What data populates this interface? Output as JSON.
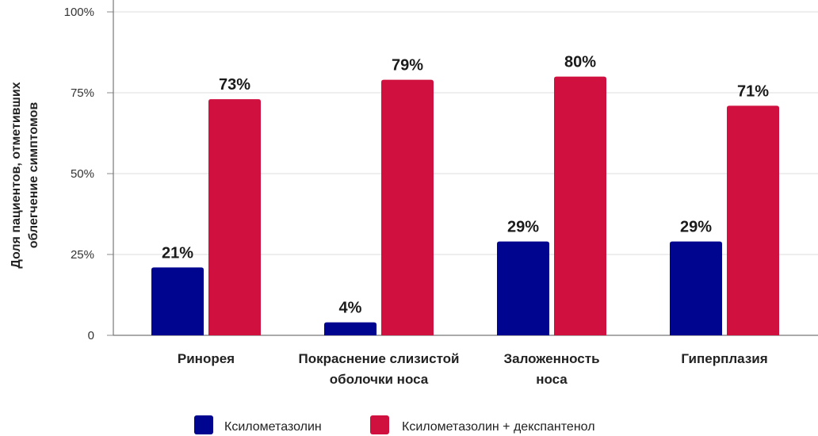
{
  "chart_data": {
    "type": "bar",
    "title": "",
    "ylabel_lines": [
      "Доля пациентов, отметивших",
      "облегчение симптомов"
    ],
    "xlabel": "",
    "ylim": [
      0,
      100
    ],
    "yticks": [
      0,
      25,
      50,
      75,
      100
    ],
    "ytick_labels": [
      "0",
      "25%",
      "50%",
      "75%",
      "100%"
    ],
    "categories": [
      [
        "Ринорея"
      ],
      [
        "Покраснение слизистой",
        "оболочки носа"
      ],
      [
        "Заложенность",
        "носа"
      ],
      [
        "Гиперплазия"
      ]
    ],
    "series": [
      {
        "name": "Ксилометазолин",
        "color": "#00058f",
        "values": [
          21,
          4,
          29,
          29
        ],
        "labels": [
          "21%",
          "4%",
          "29%",
          "29%"
        ]
      },
      {
        "name": "Ксилометазолин + декспантенол",
        "color": "#d0103f",
        "values": [
          73,
          79,
          80,
          71
        ],
        "labels": [
          "73%",
          "79%",
          "80%",
          "71%"
        ]
      }
    ],
    "grid": true,
    "legend_position": "bottom-center"
  }
}
